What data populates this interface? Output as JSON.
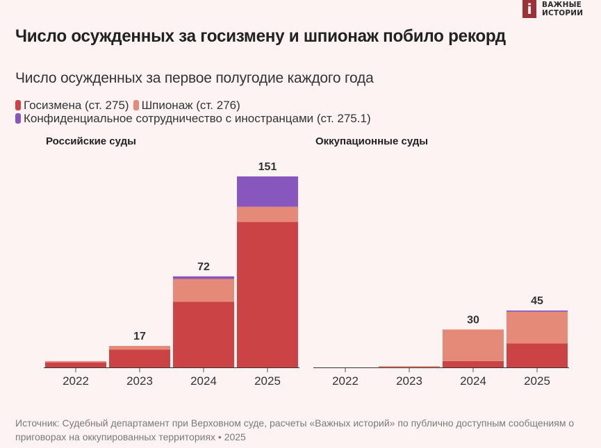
{
  "brand": {
    "logo_letter": "i",
    "line1": "ВАЖНЫЕ",
    "line2": "ИСТОРИИ"
  },
  "header": {
    "title": "Число осужденных за госизмену и шпионаж побило рекорд",
    "subtitle": "Число осужденных за первое полугодие каждого года"
  },
  "colors": {
    "treason": "#cc4345",
    "espionage": "#e58a78",
    "confidential": "#8757bd",
    "axis": "#333333",
    "background": "#fdf3f3"
  },
  "legend": [
    {
      "label": "Госизмена (ст. 275)",
      "color": "#cc4345"
    },
    {
      "label": "Шпионаж (ст. 276)",
      "color": "#e58a78"
    },
    {
      "label": "Конфиденциальное сотрудничество с иностранцами (ст. 275.1)",
      "color": "#8757bd"
    }
  ],
  "chart_data": [
    {
      "type": "bar",
      "stacked": true,
      "title": "Российские суды",
      "categories": [
        "2022",
        "2023",
        "2024",
        "2025"
      ],
      "series": [
        {
          "name": "Госизмена (ст. 275)",
          "values": [
            4,
            14,
            52,
            115
          ]
        },
        {
          "name": "Шпионаж (ст. 276)",
          "values": [
            1,
            3,
            18,
            12
          ]
        },
        {
          "name": "Конфиденциальное сотрудничество с иностранцами (ст. 275.1)",
          "values": [
            0,
            0,
            2,
            24
          ]
        }
      ],
      "totals_labels": [
        "",
        "17",
        "72",
        "151"
      ],
      "xlabel": "",
      "ylabel": "",
      "ylim": [
        0,
        151
      ],
      "grid": false
    },
    {
      "type": "bar",
      "stacked": true,
      "title": "Оккупационные суды",
      "categories": [
        "2022",
        "2023",
        "2024",
        "2025"
      ],
      "series": [
        {
          "name": "Госизмена (ст. 275)",
          "values": [
            0,
            0,
            5,
            19
          ]
        },
        {
          "name": "Шпионаж (ст. 276)",
          "values": [
            0,
            1,
            25,
            25
          ]
        },
        {
          "name": "Конфиденциальное сотрудничество с иностранцами (ст. 275.1)",
          "values": [
            0,
            0,
            0,
            1
          ]
        }
      ],
      "totals_labels": [
        "",
        "",
        "30",
        "45"
      ],
      "xlabel": "",
      "ylabel": "",
      "ylim": [
        0,
        151
      ],
      "grid": false
    }
  ],
  "footer": {
    "source": "Источник: Судебный департамент при Верховном суде, расчеты «Важных историй» по публично доступным сообщениям о приговорах на оккупированных территориях • 2025"
  }
}
